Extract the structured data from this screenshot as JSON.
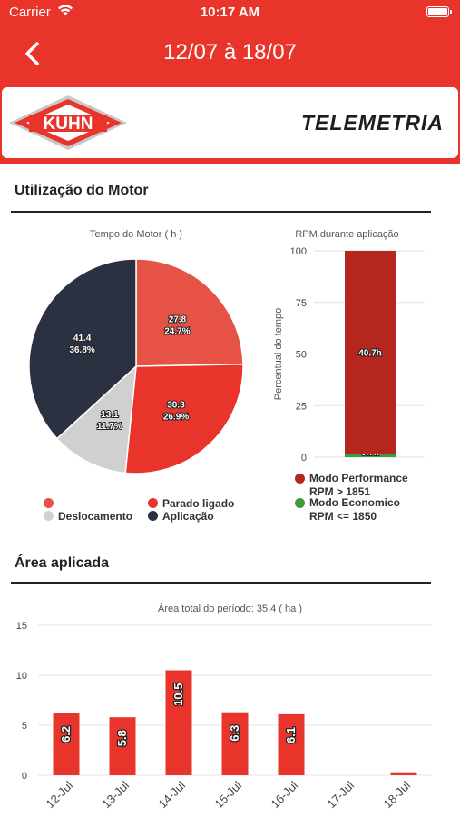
{
  "status_bar": {
    "carrier": "Carrier",
    "time": "10:17 AM"
  },
  "nav": {
    "title": "12/07 à 18/07"
  },
  "banner": {
    "brand": "KUHN",
    "product": "TELEMETRIA"
  },
  "colors": {
    "primary": "#e8342a",
    "performance": "#b5261f",
    "economico": "#3f9a3a",
    "aplicacao": "#2b3140",
    "deslocamento": "#d0d0d0",
    "parado": "#e8342a",
    "other": "#e65245"
  },
  "engine_section": {
    "title": "Utilização do Motor",
    "pie_caption": "Tempo do Motor ( h )",
    "bar_caption": "RPM durante aplicação",
    "bar_ylabel": "Percentual do tempo",
    "legend": {
      "deslocamento": "Deslocamento",
      "parado": "Parado ligado",
      "aplicacao": "Aplicação",
      "performance_line1": "Modo Performance",
      "performance_line2": "RPM > 1851",
      "economico_line1": "Modo Economico",
      "economico_line2": "RPM <= 1850"
    }
  },
  "area_section": {
    "title": "Área aplicada",
    "caption": "Área total do período: 35.4 ( ha )"
  },
  "chart_data": [
    {
      "type": "pie",
      "title": "Tempo do Motor ( h )",
      "slices": [
        {
          "name": "",
          "value": 27.8,
          "label": "27.8",
          "pct": "24.7%",
          "color": "#e65245"
        },
        {
          "name": "Parado ligado",
          "value": 30.3,
          "label": "30.3",
          "pct": "26.9%",
          "color": "#e8342a"
        },
        {
          "name": "Deslocamento",
          "value": 13.1,
          "label": "13.1",
          "pct": "11.7%",
          "color": "#d0d0d0"
        },
        {
          "name": "Aplicação",
          "value": 41.4,
          "label": "41.4",
          "pct": "36.8%",
          "color": "#2b3140"
        }
      ]
    },
    {
      "type": "bar",
      "title": "RPM durante aplicação",
      "ylabel": "Percentual do tempo",
      "ylim": [
        0,
        100
      ],
      "yticks": [
        "0",
        "25",
        "50",
        "75",
        "100"
      ],
      "series": [
        {
          "name": "Modo Economico RPM <= 1850",
          "percent": 1.7,
          "label": "0.7h",
          "color": "#3f9a3a"
        },
        {
          "name": "Modo Performance RPM > 1851",
          "percent": 98.3,
          "label": "40.7h",
          "color": "#b5261f"
        }
      ]
    },
    {
      "type": "bar",
      "title": "Área total do período: 35.4 ( ha )",
      "categories": [
        "12-Jul",
        "13-Jul",
        "14-Jul",
        "15-Jul",
        "16-Jul",
        "17-Jul",
        "18-Jul"
      ],
      "values": [
        6.2,
        5.8,
        10.5,
        6.3,
        6.1,
        0,
        0.3
      ],
      "labels": [
        "6.2",
        "5.8",
        "10.5",
        "6.3",
        "6.1",
        "",
        ""
      ],
      "ylim": [
        0,
        15
      ],
      "yticks": [
        "0",
        "5",
        "10",
        "15"
      ],
      "color": "#e8342a"
    }
  ]
}
